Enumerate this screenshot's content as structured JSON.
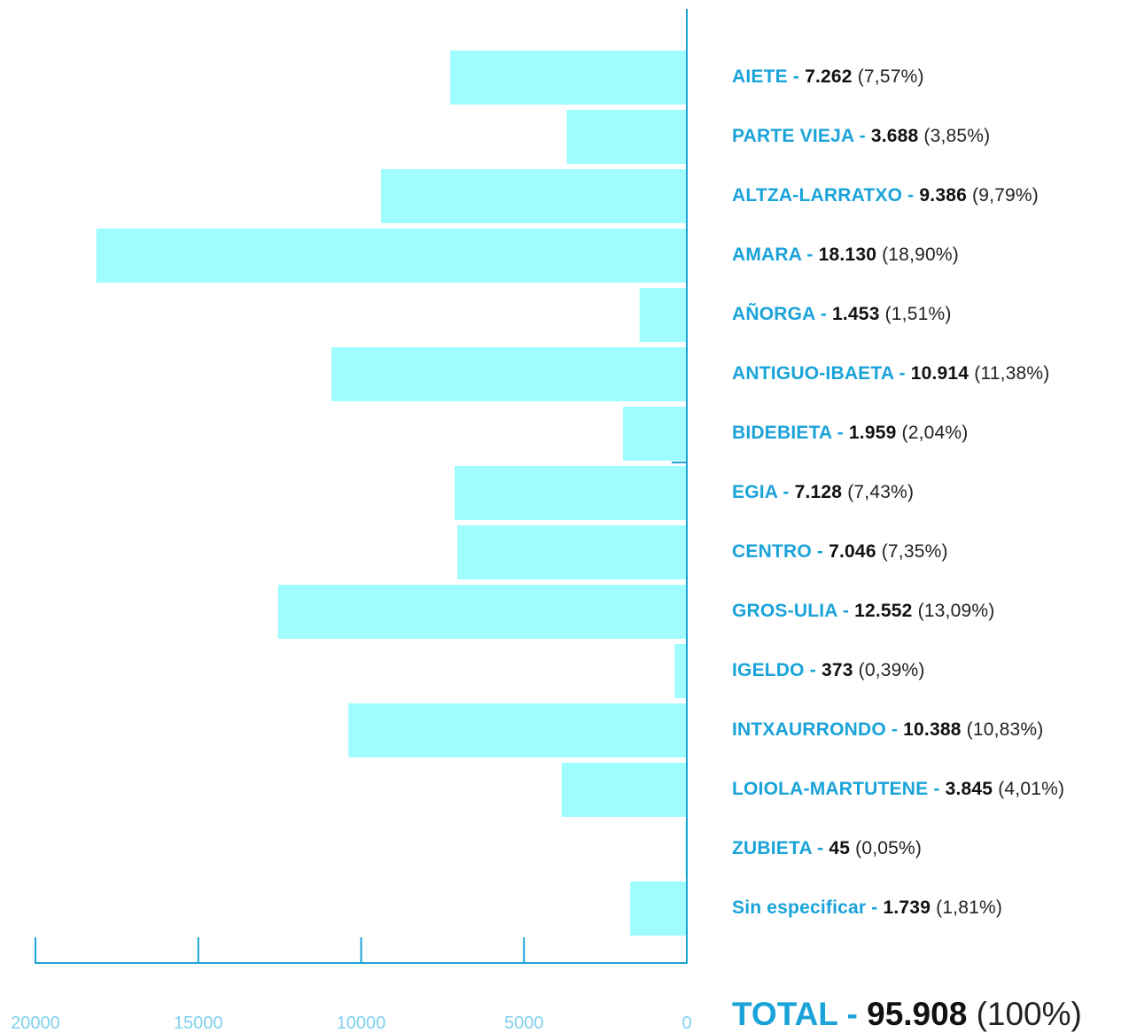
{
  "chart_data": {
    "type": "bar",
    "orientation": "horizontal",
    "title": "",
    "xlabel": "",
    "ylabel": "",
    "xlim": [
      0,
      20000
    ],
    "x_ticks": [
      "20000",
      "15000",
      "10000",
      "5000",
      "0"
    ],
    "grid": false,
    "legend": "none",
    "bar_color": "#9ffcff",
    "axis_color": "#1aa3d9",
    "categories": [
      {
        "name": "AIETE",
        "value": 7262,
        "value_label": "7.262",
        "percent": "7,57%"
      },
      {
        "name": "PARTE VIEJA",
        "value": 3688,
        "value_label": "3.688",
        "percent": "3,85%"
      },
      {
        "name": "ALTZA-LARRATXO",
        "value": 9386,
        "value_label": "9.386",
        "percent": "9,79%"
      },
      {
        "name": "AMARA",
        "value": 18130,
        "value_label": "18.130",
        "percent": "18,90%"
      },
      {
        "name": "AÑORGA",
        "value": 1453,
        "value_label": "1.453",
        "percent": "1,51%"
      },
      {
        "name": "ANTIGUO-IBAETA",
        "value": 10914,
        "value_label": "10.914",
        "percent": "11,38%"
      },
      {
        "name": "BIDEBIETA",
        "value": 1959,
        "value_label": "1.959",
        "percent": "2,04%"
      },
      {
        "name": "EGIA",
        "value": 7128,
        "value_label": "7.128",
        "percent": "7,43%"
      },
      {
        "name": "CENTRO",
        "value": 7046,
        "value_label": "7.046",
        "percent": "7,35%"
      },
      {
        "name": "GROS-ULIA",
        "value": 12552,
        "value_label": "12.552",
        "percent": "13,09%"
      },
      {
        "name": "IGELDO",
        "value": 373,
        "value_label": "373",
        "percent": "0,39%"
      },
      {
        "name": "INTXAURRONDO",
        "value": 10388,
        "value_label": "10.388",
        "percent": "10,83%"
      },
      {
        "name": "LOIOLA-MARTUTENE",
        "value": 3845,
        "value_label": "3.845",
        "percent": "4,01%"
      },
      {
        "name": "ZUBIETA",
        "value": 45,
        "value_label": "45",
        "percent": "0,05%"
      },
      {
        "name": "Sin especificar",
        "value": 1739,
        "value_label": "1.739",
        "percent": "1,81%"
      }
    ],
    "total": {
      "name": "TOTAL",
      "value": 95908,
      "value_label": "95.908",
      "percent": "100%"
    }
  }
}
